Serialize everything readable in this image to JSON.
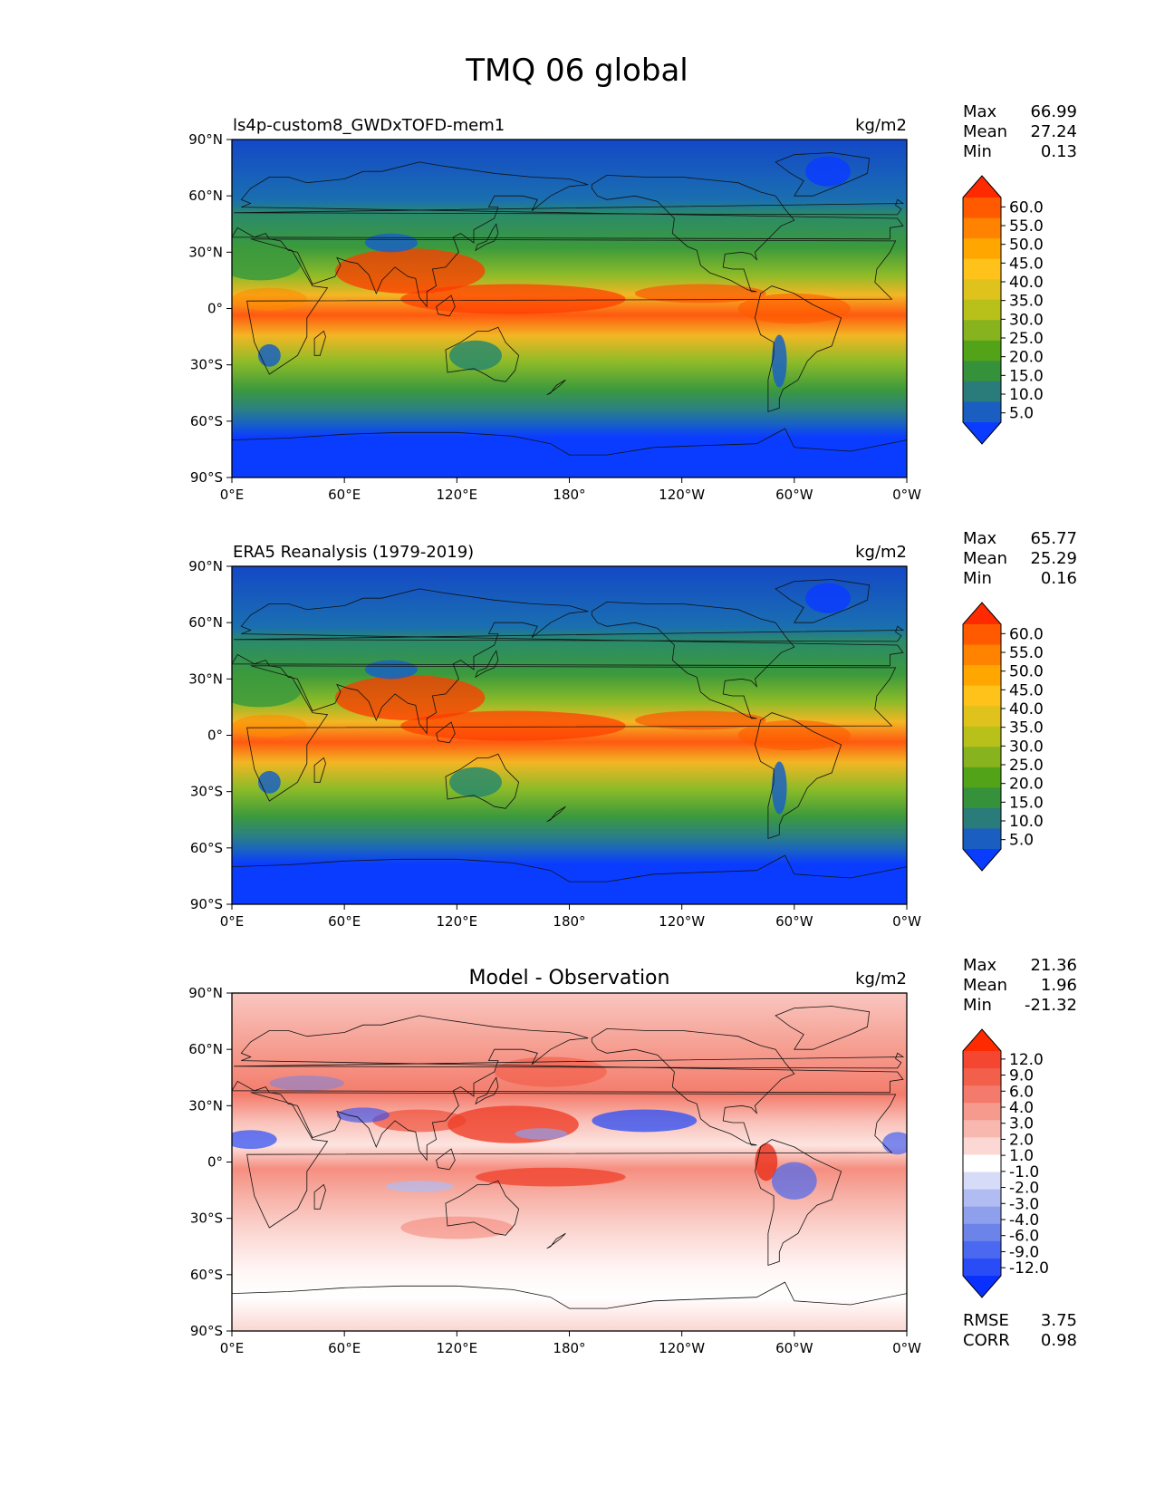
{
  "figure": {
    "title": "TMQ 06 global",
    "lat_ticks": [
      "90°N",
      "60°N",
      "30°N",
      "0°",
      "30°S",
      "60°S",
      "90°S"
    ],
    "lon_ticks": [
      "0°E",
      "60°E",
      "120°E",
      "180°",
      "120°W",
      "60°W",
      "0°W"
    ]
  },
  "panels": [
    {
      "id": "model",
      "left_title": "ls4p-custom8_GWDxTOFD-mem1",
      "center_title": "",
      "units": "kg/m2",
      "stats": [
        {
          "label": "Max",
          "value": "66.99"
        },
        {
          "label": "Mean",
          "value": "27.24"
        },
        {
          "label": "Min",
          "value": "0.13"
        }
      ],
      "colorbar": {
        "labels": [
          "60.0",
          "55.0",
          "50.0",
          "45.0",
          "40.0",
          "35.0",
          "30.0",
          "25.0",
          "20.0",
          "15.0",
          "10.0",
          "5.0"
        ],
        "colors": [
          "#ff2a00",
          "#ff5a00",
          "#ff8200",
          "#ffa600",
          "#ffc21a",
          "#e0c21c",
          "#b8c11a",
          "#86b31e",
          "#52a318",
          "#35913a",
          "#2a7c7a",
          "#1a5ec2",
          "#0a3cff"
        ]
      }
    },
    {
      "id": "obs",
      "left_title": "ERA5 Reanalysis (1979-2019)",
      "center_title": "",
      "units": "kg/m2",
      "stats": [
        {
          "label": "Max",
          "value": "65.77"
        },
        {
          "label": "Mean",
          "value": "25.29"
        },
        {
          "label": "Min",
          "value": "0.16"
        }
      ],
      "colorbar": {
        "labels": [
          "60.0",
          "55.0",
          "50.0",
          "45.0",
          "40.0",
          "35.0",
          "30.0",
          "25.0",
          "20.0",
          "15.0",
          "10.0",
          "5.0"
        ],
        "colors": [
          "#ff2a00",
          "#ff5a00",
          "#ff8200",
          "#ffa600",
          "#ffc21a",
          "#e0c21c",
          "#b8c11a",
          "#86b31e",
          "#52a318",
          "#35913a",
          "#2a7c7a",
          "#1a5ec2",
          "#0a3cff"
        ]
      }
    },
    {
      "id": "diff",
      "left_title": "",
      "center_title": "Model - Observation",
      "units": "kg/m2",
      "stats": [
        {
          "label": "Max",
          "value": "21.36"
        },
        {
          "label": "Mean",
          "value": "1.96"
        },
        {
          "label": "Min",
          "value": "-21.32"
        }
      ],
      "extra_stats": [
        {
          "label": "RMSE",
          "value": "3.75"
        },
        {
          "label": "CORR",
          "value": "0.98"
        }
      ],
      "colorbar": {
        "labels": [
          "12.0",
          "9.0",
          "6.0",
          "4.0",
          "3.0",
          "2.0",
          "1.0",
          "-1.0",
          "-2.0",
          "-3.0",
          "-4.0",
          "-6.0",
          "-9.0",
          "-12.0"
        ],
        "colors": [
          "#ff2a00",
          "#f44630",
          "#f2604c",
          "#f47a6c",
          "#f69a8e",
          "#f8b8b0",
          "#fbd8d4",
          "#ffffff",
          "#d6dcf8",
          "#b0bcf2",
          "#8ea0ec",
          "#6c84ea",
          "#4a68f0",
          "#2a4cf6",
          "#0a30ff"
        ]
      }
    }
  ]
}
